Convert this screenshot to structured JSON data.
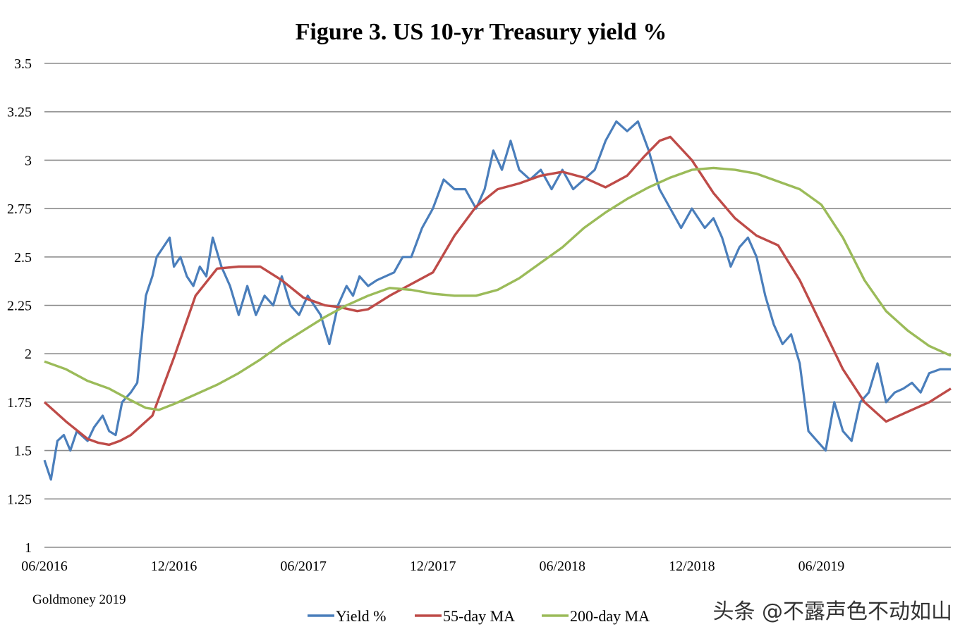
{
  "chart_data": {
    "type": "line",
    "title": "Figure 3. US 10-yr Treasury yield %",
    "source": "Goldmoney 2019",
    "watermark": "头条 @不露声色不动如山",
    "ylim": [
      1,
      3.5
    ],
    "y_ticks": [
      "3.5",
      "3.25",
      "3",
      "2.75",
      "2.5",
      "2.25",
      "2",
      "1.75",
      "1.5",
      "1.25",
      "1"
    ],
    "x_ticks": [
      "06/2016",
      "12/2016",
      "06/2017",
      "12/2017",
      "06/2018",
      "12/2018",
      "06/2019"
    ],
    "x_range_months": [
      0,
      42
    ],
    "grid": true,
    "series": [
      {
        "name": "Yield %",
        "color": "#4a7ebb",
        "x": [
          0,
          0.3,
          0.6,
          0.9,
          1.2,
          1.5,
          2,
          2.3,
          2.7,
          3,
          3.3,
          3.6,
          4,
          4.3,
          4.7,
          5,
          5.2,
          5.5,
          5.8,
          6,
          6.3,
          6.6,
          6.9,
          7.2,
          7.5,
          7.8,
          8.2,
          8.6,
          9,
          9.4,
          9.8,
          10.2,
          10.6,
          11,
          11.4,
          11.8,
          12.2,
          12.5,
          12.8,
          13.2,
          13.6,
          14,
          14.3,
          14.6,
          15,
          15.4,
          15.8,
          16.2,
          16.6,
          17,
          17.5,
          18,
          18.5,
          19,
          19.5,
          20,
          20.4,
          20.8,
          21.2,
          21.6,
          22,
          22.5,
          23,
          23.5,
          24,
          24.5,
          25,
          25.5,
          26,
          26.5,
          27,
          27.5,
          28,
          28.5,
          29,
          29.5,
          30,
          30.3,
          30.6,
          31,
          31.4,
          31.8,
          32.2,
          32.6,
          33,
          33.4,
          33.8,
          34.2,
          34.6,
          35,
          35.4,
          35.8,
          36.2,
          36.6,
          37,
          37.4,
          37.8,
          38.2,
          38.6,
          39,
          39.4,
          39.8,
          40.2,
          40.6,
          41,
          41.5,
          42
        ],
        "values": [
          1.45,
          1.35,
          1.55,
          1.58,
          1.5,
          1.6,
          1.55,
          1.62,
          1.68,
          1.6,
          1.58,
          1.75,
          1.8,
          1.85,
          2.3,
          2.4,
          2.5,
          2.55,
          2.6,
          2.45,
          2.5,
          2.4,
          2.35,
          2.45,
          2.4,
          2.6,
          2.45,
          2.35,
          2.2,
          2.35,
          2.2,
          2.3,
          2.25,
          2.4,
          2.25,
          2.2,
          2.3,
          2.25,
          2.2,
          2.05,
          2.25,
          2.35,
          2.3,
          2.4,
          2.35,
          2.38,
          2.4,
          2.42,
          2.5,
          2.5,
          2.65,
          2.75,
          2.9,
          2.85,
          2.85,
          2.75,
          2.85,
          3.05,
          2.95,
          3.1,
          2.95,
          2.9,
          2.95,
          2.85,
          2.95,
          2.85,
          2.9,
          2.95,
          3.1,
          3.2,
          3.15,
          3.2,
          3.05,
          2.85,
          2.75,
          2.65,
          2.75,
          2.7,
          2.65,
          2.7,
          2.6,
          2.45,
          2.55,
          2.6,
          2.5,
          2.3,
          2.15,
          2.05,
          2.1,
          1.95,
          1.6,
          1.55,
          1.5,
          1.75,
          1.6,
          1.55,
          1.75,
          1.8,
          1.95,
          1.75,
          1.8,
          1.82,
          1.85,
          1.8,
          1.9,
          1.92,
          1.92
        ]
      },
      {
        "name": "55-day MA",
        "color": "#be4b48",
        "x": [
          0,
          1,
          2,
          2.5,
          3,
          3.5,
          4,
          5,
          6,
          7,
          8,
          9,
          10,
          11,
          12,
          13,
          13.7,
          14.5,
          15,
          16,
          17,
          18,
          19,
          20,
          21,
          22,
          23,
          24,
          25,
          26,
          27,
          27.8,
          28.5,
          29,
          30,
          31,
          32,
          33,
          34,
          35,
          36,
          37,
          38,
          39,
          40,
          41,
          42
        ],
        "values": [
          1.75,
          1.65,
          1.56,
          1.54,
          1.53,
          1.55,
          1.58,
          1.68,
          1.98,
          2.3,
          2.44,
          2.45,
          2.45,
          2.38,
          2.29,
          2.25,
          2.24,
          2.22,
          2.23,
          2.3,
          2.36,
          2.42,
          2.61,
          2.76,
          2.85,
          2.88,
          2.92,
          2.94,
          2.91,
          2.86,
          2.92,
          3.02,
          3.1,
          3.12,
          3.0,
          2.83,
          2.7,
          2.61,
          2.56,
          2.38,
          2.15,
          1.92,
          1.75,
          1.65,
          1.7,
          1.75,
          1.82
        ]
      },
      {
        "name": "200-day MA",
        "color": "#9bbb59",
        "x": [
          0,
          1,
          2,
          3,
          4,
          4.7,
          5.3,
          6,
          7,
          8,
          9,
          10,
          11,
          12,
          13,
          14,
          15,
          16,
          17,
          18,
          19,
          20,
          21,
          22,
          23,
          24,
          25,
          26,
          27,
          28,
          29,
          30,
          31,
          32,
          33,
          34,
          35,
          36,
          37,
          38,
          39,
          40,
          41,
          42
        ],
        "values": [
          1.96,
          1.92,
          1.86,
          1.82,
          1.76,
          1.72,
          1.71,
          1.74,
          1.79,
          1.84,
          1.9,
          1.97,
          2.05,
          2.12,
          2.19,
          2.25,
          2.3,
          2.34,
          2.33,
          2.31,
          2.3,
          2.3,
          2.33,
          2.39,
          2.47,
          2.55,
          2.65,
          2.73,
          2.8,
          2.86,
          2.91,
          2.95,
          2.96,
          2.95,
          2.93,
          2.89,
          2.85,
          2.77,
          2.6,
          2.38,
          2.22,
          2.12,
          2.04,
          1.99
        ]
      }
    ]
  }
}
